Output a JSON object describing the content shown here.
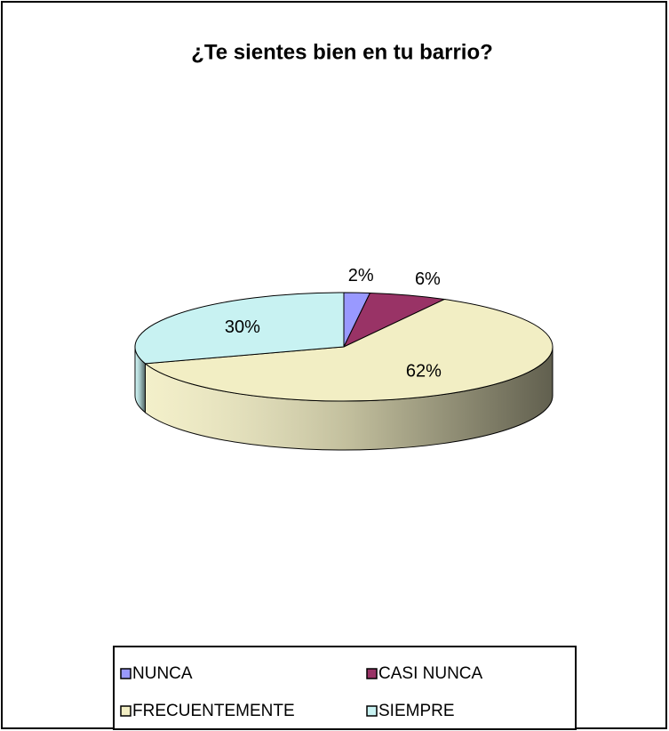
{
  "chart_data": {
    "type": "pie3d",
    "title": "¿Te sientes bien en tu barrio?",
    "categories": [
      "NUNCA",
      "CASI NUNCA",
      "FRECUENTEMENTE",
      "SIEMPRE"
    ],
    "values": [
      2,
      6,
      62,
      30
    ],
    "value_labels": [
      "2%",
      "6%",
      "62%",
      "30%"
    ],
    "colors": [
      "#9999ff",
      "#993366",
      "#f2eec4",
      "#c8f2f2"
    ],
    "legend": "bottom"
  }
}
